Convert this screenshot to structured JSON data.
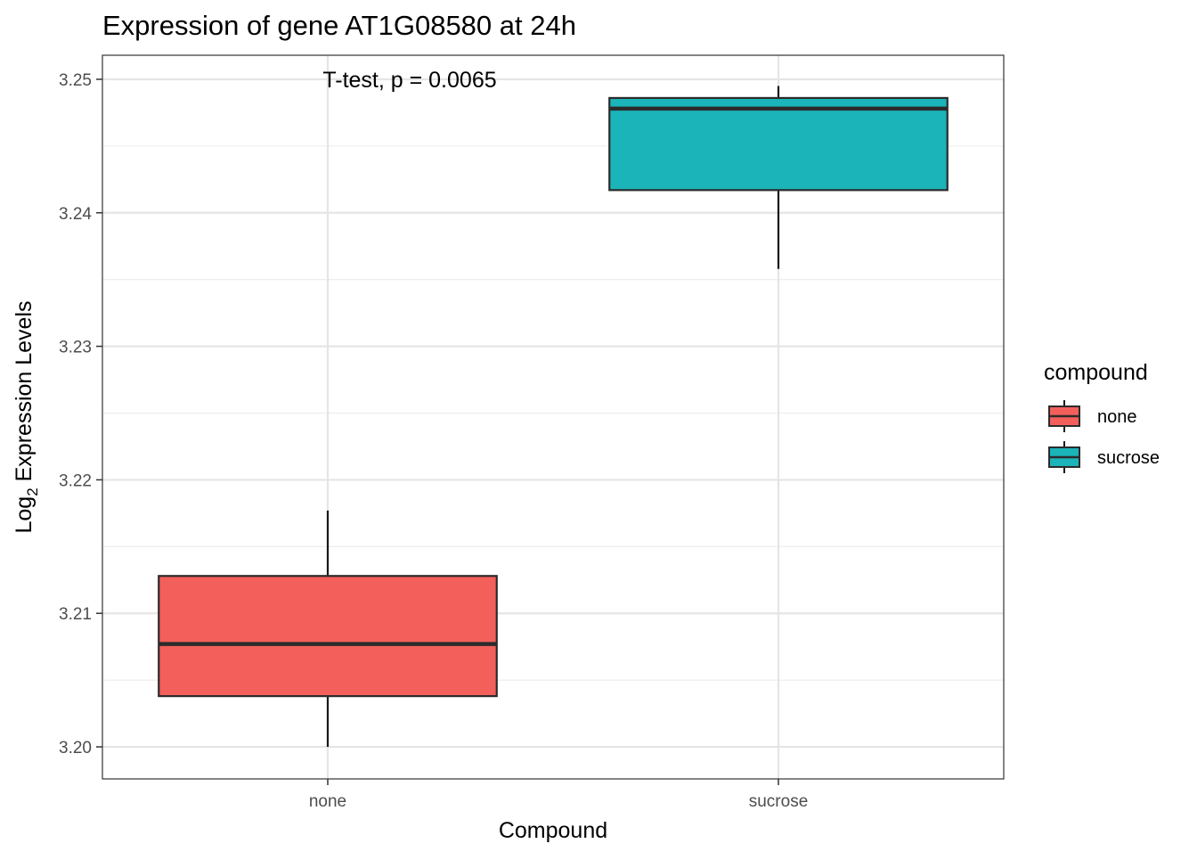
{
  "chart_data": {
    "type": "boxplot",
    "title": "Expression of gene AT1G08580 at 24h",
    "xlabel": "Compound",
    "ylabel_main": "Log",
    "ylabel_sub": "2",
    "ylabel_rest": " Expression Levels",
    "annotation": "T-test, p = 0.0065",
    "ylim": [
      3.1976,
      3.2518
    ],
    "y_ticks": [
      3.2,
      3.21,
      3.22,
      3.23,
      3.24,
      3.25
    ],
    "y_tick_labels": [
      "3.20",
      "3.21",
      "3.22",
      "3.23",
      "3.24",
      "3.25"
    ],
    "categories": [
      "none",
      "sucrose"
    ],
    "boxes": [
      {
        "category": "none",
        "min": 3.2,
        "q1": 3.2038,
        "median": 3.2077,
        "q3": 3.2128,
        "max": 3.2177,
        "color": "#F35F5B"
      },
      {
        "category": "sucrose",
        "min": 3.2358,
        "q1": 3.2417,
        "median": 3.2478,
        "q3": 3.2486,
        "max": 3.2495,
        "color": "#1BB4B8"
      }
    ],
    "legend": {
      "title": "compound",
      "position": "right",
      "entries": [
        {
          "label": "none",
          "color": "#F35F5B"
        },
        {
          "label": "sucrose",
          "color": "#1BB4B8"
        }
      ]
    },
    "grid": true
  }
}
